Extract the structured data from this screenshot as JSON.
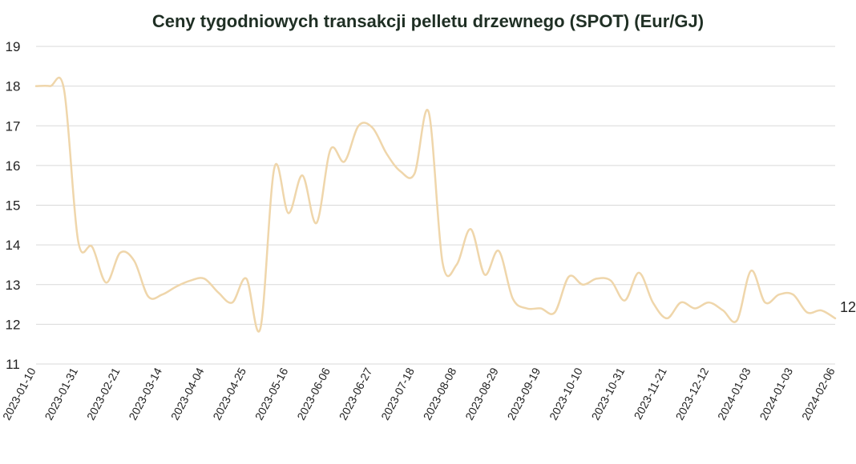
{
  "chart_data": {
    "type": "line",
    "title": "Ceny tygodniowych transakcji pelletu drzewnego (SPOT) (Eur/GJ)",
    "xlabel": "",
    "ylabel": "",
    "ylim": [
      11,
      19
    ],
    "yticks": [
      11,
      12,
      13,
      14,
      15,
      16,
      17,
      18,
      19
    ],
    "xticks": [
      "2023-01-10",
      "2023-01-31",
      "2023-02-21",
      "2023-03-14",
      "2023-04-04",
      "2023-04-25",
      "2023-05-16",
      "2023-06-06",
      "2023-06-27",
      "2023-07-18",
      "2023-08-08",
      "2023-08-29",
      "2023-09-19",
      "2023-10-10",
      "2023-10-31",
      "2023-11-21",
      "2023-12-12",
      "2024-01-03",
      "2024-01-03",
      "2024-02-06"
    ],
    "grid": true,
    "line_color": "#efd6ab",
    "last_value_label": "12",
    "series": [
      {
        "values": [
          18.0,
          18.0,
          17.9,
          14.1,
          13.95,
          13.05,
          13.8,
          13.6,
          12.7,
          12.75,
          12.95,
          13.1,
          13.15,
          12.8,
          12.55,
          13.15,
          11.9,
          15.95,
          14.8,
          15.75,
          14.55,
          16.4,
          16.1,
          17.0,
          16.95,
          16.3,
          15.85,
          15.8,
          17.35,
          13.55,
          13.5,
          14.4,
          13.25,
          13.85,
          12.65,
          12.4,
          12.4,
          12.3,
          13.2,
          13.0,
          13.15,
          13.1,
          12.6,
          13.3,
          12.55,
          12.15,
          12.55,
          12.4,
          12.55,
          12.35,
          12.1,
          13.35,
          12.55,
          12.75,
          12.75,
          12.3,
          12.35,
          12.15
        ]
      }
    ]
  }
}
